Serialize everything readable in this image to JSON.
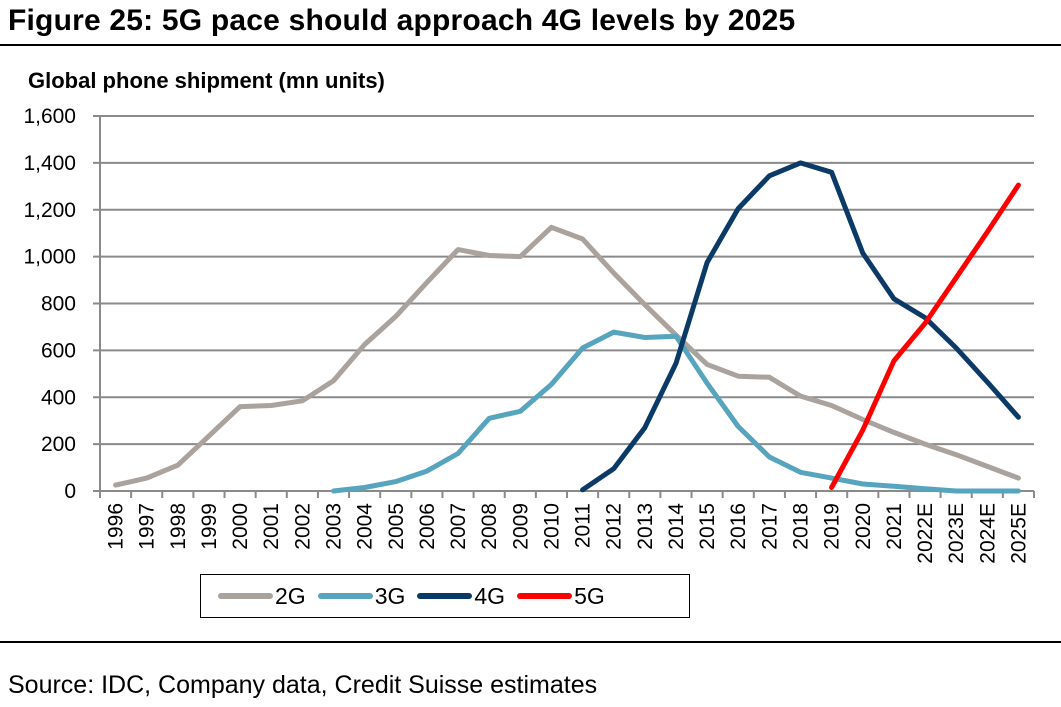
{
  "figure": {
    "title": "Figure 25: 5G pace should approach 4G levels by 2025",
    "source": "Source: IDC, Company data, Credit Suisse estimates"
  },
  "chart_data": {
    "type": "line",
    "title": "Figure 25: 5G pace should approach 4G levels by 2025",
    "ylabel": "Global phone shipment (mn units)",
    "xlabel": "",
    "ylim": [
      0,
      1600
    ],
    "yticks": [
      0,
      200,
      400,
      600,
      800,
      1000,
      1200,
      1400,
      1600
    ],
    "ytick_labels": [
      "0",
      "200",
      "400",
      "600",
      "800",
      "1,000",
      "1,200",
      "1,400",
      "1,600"
    ],
    "grid": true,
    "legend_position": "bottom",
    "categories": [
      "1996",
      "1997",
      "1998",
      "1999",
      "2000",
      "2001",
      "2002",
      "2003",
      "2004",
      "2005",
      "2006",
      "2007",
      "2008",
      "2009",
      "2010",
      "2011",
      "2012",
      "2013",
      "2014",
      "2015",
      "2016",
      "2017",
      "2018",
      "2019",
      "2020",
      "2021",
      "2022E",
      "2023E",
      "2024E",
      "2025E"
    ],
    "series": [
      {
        "name": "2G",
        "color": "#aaa29c",
        "values": [
          25,
          55,
          110,
          235,
          360,
          365,
          385,
          470,
          625,
          745,
          890,
          1030,
          1005,
          1000,
          1125,
          1075,
          930,
          795,
          665,
          540,
          490,
          485,
          405,
          365,
          305,
          250,
          200,
          155,
          105,
          55
        ]
      },
      {
        "name": "3G",
        "color": "#56a4bd",
        "values": [
          null,
          null,
          null,
          null,
          null,
          null,
          null,
          0,
          15,
          40,
          85,
          160,
          310,
          340,
          455,
          610,
          678,
          655,
          660,
          460,
          275,
          145,
          80,
          55,
          30,
          20,
          10,
          0,
          0,
          0
        ]
      },
      {
        "name": "4G",
        "color": "#0b3a67",
        "values": [
          null,
          null,
          null,
          null,
          null,
          null,
          null,
          null,
          null,
          null,
          null,
          null,
          null,
          null,
          null,
          5,
          95,
          270,
          545,
          975,
          1205,
          1345,
          1400,
          1360,
          1015,
          820,
          740,
          610,
          465,
          315
        ]
      },
      {
        "name": "5G",
        "color": "#ff0000",
        "values": [
          null,
          null,
          null,
          null,
          null,
          null,
          null,
          null,
          null,
          null,
          null,
          null,
          null,
          null,
          null,
          null,
          null,
          null,
          null,
          null,
          null,
          null,
          null,
          15,
          260,
          555,
          715,
          910,
          1105,
          1305
        ]
      }
    ]
  }
}
